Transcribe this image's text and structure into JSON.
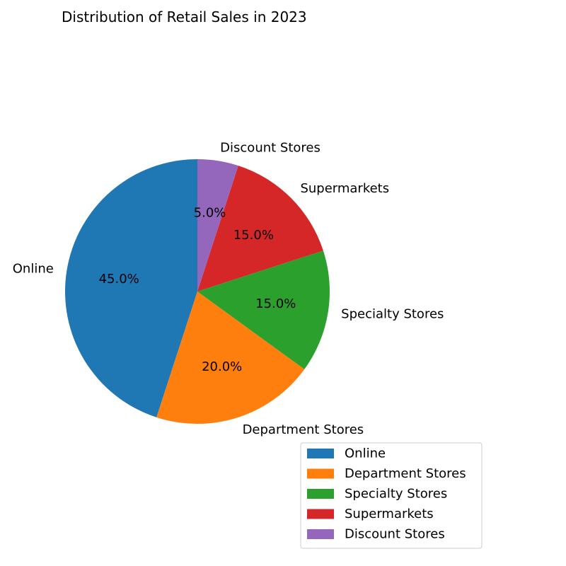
{
  "chart_data": {
    "type": "pie",
    "title": "Distribution of Retail Sales in 2023",
    "labels": [
      "Online",
      "Department Stores",
      "Specialty Stores",
      "Supermarkets",
      "Discount Stores"
    ],
    "values": [
      45.0,
      20.0,
      15.0,
      15.0,
      5.0
    ],
    "percent_labels": [
      "45.0%",
      "20.0%",
      "15.0%",
      "15.0%",
      "5.0%"
    ],
    "colors": [
      "#1f77b4",
      "#ff7f0e",
      "#2ca02c",
      "#d62728",
      "#9467bd"
    ],
    "start_angle_deg": 90,
    "direction": "counterclockwise",
    "legend_position": "bottom-right"
  }
}
